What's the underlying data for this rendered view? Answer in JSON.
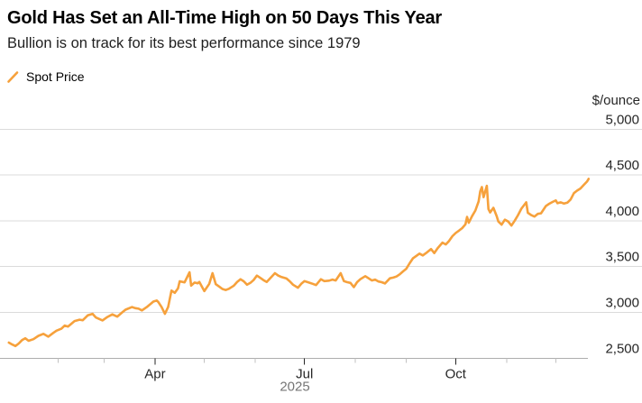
{
  "header": {
    "title": "Gold Has Set an All-Time High on 50 Days This Year",
    "subtitle": "Bullion is on track for its best performance since 1979"
  },
  "legend": {
    "items": [
      {
        "label": "Spot Price",
        "swatch": "slash-icon",
        "color": "#F6A13C"
      }
    ]
  },
  "colors": {
    "line": "#F6A13C",
    "grid": "#DBDBDB",
    "axis": "#ADADAD",
    "tick_major": "#262626",
    "tick_minor": "#C2C2C2",
    "tick_label": "#262626",
    "year_label": "#757575",
    "title": "#000000",
    "subtitle": "#1f1f1f"
  },
  "chart_data": {
    "type": "line",
    "title": "Gold Has Set an All-Time High on 50 Days This Year",
    "subtitle": "Bullion is on track for its best performance since 1979",
    "xlabel": "",
    "ylabel": "$/ounce",
    "ylim": [
      2500,
      5000
    ],
    "grid": "horizontal",
    "legend_position": "top-left",
    "x_unit": "day_of_year_2025",
    "year_label": "2025",
    "y_ticks": [
      {
        "value": 2500,
        "label": "2,500"
      },
      {
        "value": 3000,
        "label": "3,000"
      },
      {
        "value": 3500,
        "label": "3,500"
      },
      {
        "value": 4000,
        "label": "4,000"
      },
      {
        "value": 4500,
        "label": "4,500"
      },
      {
        "value": 5000,
        "label": "5,000"
      }
    ],
    "x_ticks_major": [
      {
        "doy": 91,
        "label": "Apr"
      },
      {
        "doy": 182,
        "label": "Jul"
      },
      {
        "doy": 274,
        "label": "Oct"
      }
    ],
    "x_ticks_minor": [
      32,
      60,
      121,
      152,
      213,
      244,
      305,
      335
    ],
    "series": [
      {
        "name": "Spot Price",
        "color": "#F6A13C",
        "points": [
          [
            2,
            2670
          ],
          [
            4,
            2650
          ],
          [
            6,
            2633
          ],
          [
            8,
            2660
          ],
          [
            10,
            2697
          ],
          [
            12,
            2718
          ],
          [
            14,
            2690
          ],
          [
            17,
            2708
          ],
          [
            20,
            2744
          ],
          [
            23,
            2766
          ],
          [
            26,
            2735
          ],
          [
            29,
            2776
          ],
          [
            31,
            2800
          ],
          [
            34,
            2822
          ],
          [
            36,
            2856
          ],
          [
            38,
            2845
          ],
          [
            42,
            2906
          ],
          [
            45,
            2920
          ],
          [
            47,
            2914
          ],
          [
            50,
            2968
          ],
          [
            53,
            2984
          ],
          [
            55,
            2944
          ],
          [
            59,
            2912
          ],
          [
            62,
            2950
          ],
          [
            65,
            2978
          ],
          [
            68,
            2954
          ],
          [
            71,
            3000
          ],
          [
            73,
            3030
          ],
          [
            77,
            3058
          ],
          [
            79,
            3046
          ],
          [
            81,
            3040
          ],
          [
            83,
            3022
          ],
          [
            86,
            3058
          ],
          [
            90,
            3118
          ],
          [
            92,
            3130
          ],
          [
            93,
            3112
          ],
          [
            95,
            3058
          ],
          [
            97,
            2984
          ],
          [
            99,
            3060
          ],
          [
            101,
            3238
          ],
          [
            103,
            3214
          ],
          [
            105,
            3262
          ],
          [
            106,
            3340
          ],
          [
            109,
            3328
          ],
          [
            112,
            3438
          ],
          [
            113,
            3292
          ],
          [
            115,
            3326
          ],
          [
            117,
            3318
          ],
          [
            118,
            3332
          ],
          [
            121,
            3232
          ],
          [
            124,
            3312
          ],
          [
            126,
            3428
          ],
          [
            128,
            3308
          ],
          [
            130,
            3282
          ],
          [
            132,
            3256
          ],
          [
            134,
            3244
          ],
          [
            136,
            3258
          ],
          [
            139,
            3292
          ],
          [
            141,
            3332
          ],
          [
            143,
            3362
          ],
          [
            145,
            3340
          ],
          [
            147,
            3302
          ],
          [
            149,
            3322
          ],
          [
            151,
            3352
          ],
          [
            153,
            3402
          ],
          [
            155,
            3378
          ],
          [
            157,
            3352
          ],
          [
            159,
            3332
          ],
          [
            162,
            3390
          ],
          [
            164,
            3428
          ],
          [
            166,
            3402
          ],
          [
            168,
            3386
          ],
          [
            171,
            3370
          ],
          [
            173,
            3340
          ],
          [
            175,
            3302
          ],
          [
            178,
            3270
          ],
          [
            180,
            3312
          ],
          [
            182,
            3342
          ],
          [
            184,
            3330
          ],
          [
            187,
            3312
          ],
          [
            189,
            3298
          ],
          [
            192,
            3362
          ],
          [
            194,
            3342
          ],
          [
            197,
            3346
          ],
          [
            199,
            3358
          ],
          [
            201,
            3348
          ],
          [
            204,
            3428
          ],
          [
            206,
            3342
          ],
          [
            208,
            3330
          ],
          [
            210,
            3322
          ],
          [
            212,
            3276
          ],
          [
            214,
            3330
          ],
          [
            216,
            3362
          ],
          [
            219,
            3396
          ],
          [
            221,
            3372
          ],
          [
            223,
            3348
          ],
          [
            225,
            3358
          ],
          [
            227,
            3338
          ],
          [
            229,
            3330
          ],
          [
            231,
            3316
          ],
          [
            234,
            3372
          ],
          [
            236,
            3380
          ],
          [
            238,
            3392
          ],
          [
            240,
            3416
          ],
          [
            242,
            3448
          ],
          [
            244,
            3476
          ],
          [
            246,
            3536
          ],
          [
            248,
            3590
          ],
          [
            250,
            3616
          ],
          [
            252,
            3642
          ],
          [
            254,
            3622
          ],
          [
            256,
            3648
          ],
          [
            259,
            3692
          ],
          [
            261,
            3648
          ],
          [
            263,
            3700
          ],
          [
            266,
            3762
          ],
          [
            268,
            3742
          ],
          [
            270,
            3780
          ],
          [
            272,
            3832
          ],
          [
            274,
            3866
          ],
          [
            276,
            3892
          ],
          [
            278,
            3920
          ],
          [
            280,
            3962
          ],
          [
            281,
            4042
          ],
          [
            282,
            3978
          ],
          [
            284,
            4050
          ],
          [
            286,
            4112
          ],
          [
            288,
            4212
          ],
          [
            289,
            4322
          ],
          [
            290,
            4368
          ],
          [
            291,
            4258
          ],
          [
            293,
            4382
          ],
          [
            294,
            4128
          ],
          [
            295,
            4092
          ],
          [
            297,
            4142
          ],
          [
            299,
            4052
          ],
          [
            300,
            3992
          ],
          [
            302,
            3958
          ],
          [
            304,
            4012
          ],
          [
            306,
            3992
          ],
          [
            308,
            3948
          ],
          [
            310,
            4002
          ],
          [
            312,
            4062
          ],
          [
            314,
            4132
          ],
          [
            317,
            4202
          ],
          [
            318,
            4088
          ],
          [
            320,
            4062
          ],
          [
            322,
            4046
          ],
          [
            324,
            4076
          ],
          [
            326,
            4082
          ],
          [
            329,
            4162
          ],
          [
            331,
            4186
          ],
          [
            333,
            4206
          ],
          [
            335,
            4222
          ],
          [
            336,
            4192
          ],
          [
            338,
            4202
          ],
          [
            340,
            4188
          ],
          [
            342,
            4198
          ],
          [
            344,
            4232
          ],
          [
            346,
            4302
          ],
          [
            348,
            4330
          ],
          [
            350,
            4352
          ],
          [
            352,
            4392
          ],
          [
            354,
            4428
          ],
          [
            355,
            4458
          ]
        ]
      }
    ]
  }
}
